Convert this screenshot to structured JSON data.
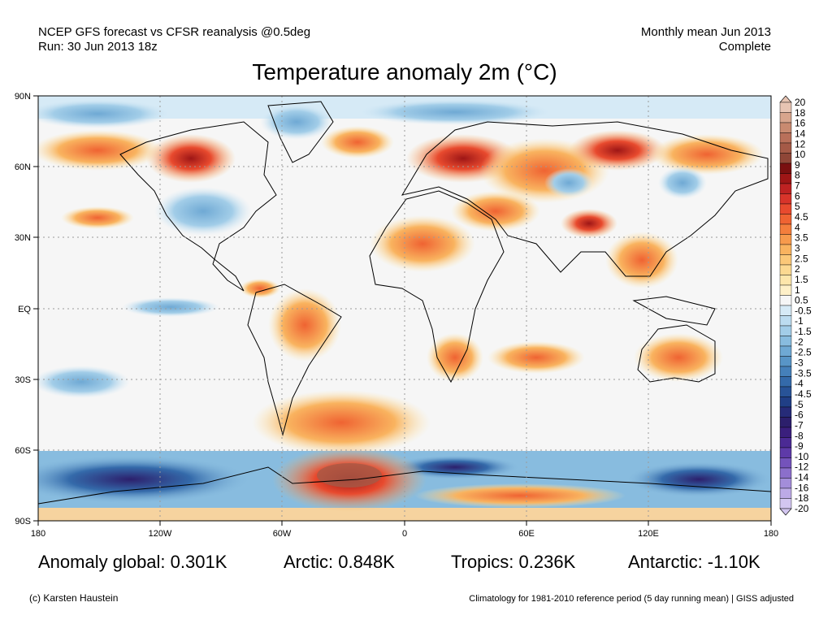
{
  "header": {
    "line1": "NCEP GFS forecast vs CFSR reanalysis @0.5deg",
    "line2": "Run: 30 Jun 2013 18z",
    "right1": "Monthly mean Jun 2013",
    "right2": "Complete"
  },
  "title": "Temperature anomaly 2m (°C)",
  "axes": {
    "lat_labels": [
      "90N",
      "60N",
      "30N",
      "EQ",
      "30S",
      "60S",
      "90S"
    ],
    "lon_labels": [
      "180",
      "120W",
      "60W",
      "0",
      "60E",
      "120E",
      "180"
    ]
  },
  "colorbar": {
    "labels": [
      "20",
      "18",
      "16",
      "14",
      "12",
      "10",
      "9",
      "8",
      "7",
      "6",
      "5",
      "4.5",
      "4",
      "3.5",
      "3",
      "2.5",
      "2",
      "1.5",
      "1",
      "0.5",
      "-0.5",
      "-1",
      "-1.5",
      "-2",
      "-2.5",
      "-3",
      "-3.5",
      "-4",
      "-4.5",
      "-5",
      "-6",
      "-7",
      "-8",
      "-9",
      "-10",
      "-12",
      "-14",
      "-16",
      "-18",
      "-20"
    ],
    "colors": [
      "#e7c4b3",
      "#d8a58d",
      "#c98a70",
      "#b9705a",
      "#a55a47",
      "#8f4637",
      "#7a1010",
      "#9e1616",
      "#be2222",
      "#d8342a",
      "#e84a2e",
      "#ef6332",
      "#f47e3c",
      "#f79a4c",
      "#f9b35f",
      "#fbc878",
      "#fcd991",
      "#fde6ab",
      "#fef0c8",
      "#f6f6f6",
      "#d6eaf6",
      "#bcdcf0",
      "#a2cde8",
      "#88bcdf",
      "#6fa9d4",
      "#5895c7",
      "#4580ba",
      "#346aaa",
      "#285397",
      "#203f86",
      "#262b78",
      "#2c1f6c",
      "#3a1f7d",
      "#4b2a94",
      "#5e3aa8",
      "#7453bb",
      "#8b6fcb",
      "#a38dd9",
      "#bcaae6",
      "#d3c6f0"
    ]
  },
  "stats": {
    "global": "Anomaly global: 0.301K",
    "arctic": "Arctic: 0.848K",
    "tropics": "Tropics: 0.236K",
    "antarctic": "Antarctic: -1.10K"
  },
  "footer": {
    "credit": "(c) Karsten Haustein",
    "climatology": "Climatology for 1981-2010 reference period (5 day running mean) | GISS adjusted"
  }
}
